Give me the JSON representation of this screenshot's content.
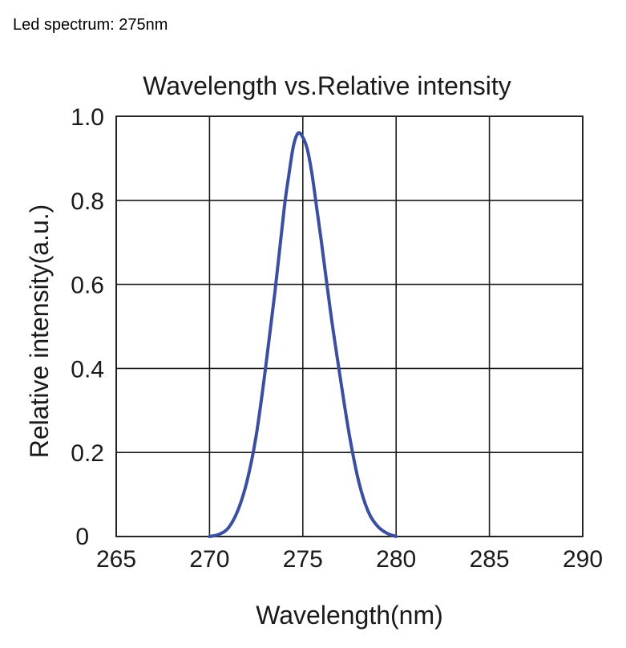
{
  "caption": "Led spectrum: 275nm",
  "chart_data": {
    "type": "line",
    "title": "Wavelength vs.Relative intensity",
    "xlabel": "Wavelength(nm)",
    "ylabel": "Relative intensity(a.u.)",
    "xlim": [
      265,
      290
    ],
    "ylim": [
      0,
      1.0
    ],
    "x_ticks": [
      265,
      270,
      275,
      280,
      285,
      290
    ],
    "x_tick_labels": [
      "265",
      "270",
      "275",
      "280",
      "285",
      "290"
    ],
    "y_ticks": [
      0,
      0.2,
      0.4,
      0.6,
      0.8,
      1.0
    ],
    "y_tick_labels": [
      "0",
      "0.2",
      "0.4",
      "0.6",
      "0.8",
      "1.0"
    ],
    "grid": true,
    "series": [
      {
        "color": "#3a4fa0",
        "x": [
          270,
          270.5,
          271,
          271.5,
          272,
          272.5,
          273,
          273.5,
          274,
          274.25,
          274.5,
          274.75,
          275,
          275.25,
          275.5,
          275.75,
          276,
          276.5,
          277,
          277.5,
          278,
          278.5,
          279,
          279.5,
          280
        ],
        "y": [
          0.0,
          0.005,
          0.02,
          0.06,
          0.13,
          0.24,
          0.4,
          0.58,
          0.78,
          0.86,
          0.93,
          0.96,
          0.95,
          0.92,
          0.86,
          0.78,
          0.7,
          0.53,
          0.38,
          0.24,
          0.13,
          0.06,
          0.025,
          0.008,
          0.0
        ]
      }
    ]
  }
}
